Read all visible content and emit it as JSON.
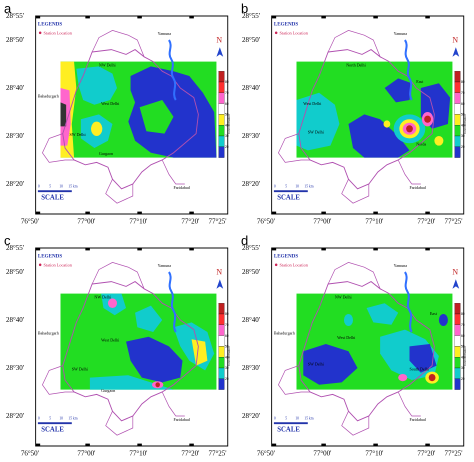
{
  "panels": [
    {
      "letter": "a"
    },
    {
      "letter": "b"
    },
    {
      "letter": "c"
    },
    {
      "letter": "d"
    }
  ],
  "axes": {
    "y_ticks": [
      "28°55'",
      "28°50'",
      "28°40'",
      "28°30'",
      "28°20'"
    ],
    "x_ticks": [
      "76°50'",
      "77°00'",
      "77°10'",
      "77°20'",
      "77°25'"
    ]
  },
  "legend": {
    "title": "LEGENDS",
    "station": "Station Location"
  },
  "places": {
    "yamuna": "Yamuna",
    "nw_delhi": "NW Delhi",
    "north_delhi": "North Delhi",
    "bahadurgarh": "Bahadurgarh",
    "west_delhi": "West Delhi",
    "sw_delhi": "SW Delhi",
    "gurgaon": "Gurgaon",
    "east": "East",
    "noida": "Noida",
    "faridabad": "Faridabad",
    "south_delhi": "South Delhi",
    "central": "Central"
  },
  "north_label": "N",
  "scale": {
    "label": "SCALE",
    "ticks": [
      "0",
      "5",
      "10",
      "15 km"
    ]
  },
  "colorbar": {
    "title": "Concentration",
    "values": [
      "80",
      "70",
      "60",
      "50",
      "40",
      "30",
      "20"
    ],
    "colors": [
      "#c02020",
      "#ff3030",
      "#ff66cc",
      "#ffffff",
      "#ffee22",
      "#22dd22",
      "#11cccc",
      "#2233cc"
    ]
  },
  "colors": {
    "map_green": "#22dd22",
    "map_blue": "#2233cc",
    "map_cyan": "#11cccc",
    "map_yellow": "#ffee22",
    "boundary": "#b050b0",
    "river": "#3070ff"
  }
}
